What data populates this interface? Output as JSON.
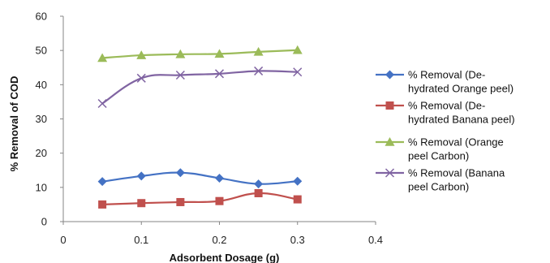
{
  "chart_data": {
    "type": "line",
    "xlabel": "Adsorbent Dosage (g)",
    "ylabel": "% Removal of COD",
    "xlim": [
      0,
      0.4
    ],
    "ylim": [
      0,
      60
    ],
    "x_ticks": [
      "0",
      "0.1",
      "0.2",
      "0.3",
      "0.4"
    ],
    "y_ticks": [
      "0",
      "10",
      "20",
      "30",
      "40",
      "50",
      "60"
    ],
    "grid": false,
    "legend_position": "right",
    "series": [
      {
        "name": "% Removal (De-hydrated Orange peel)",
        "legend_lines": [
          "% Removal (De-",
          "hydrated Orange peel)"
        ],
        "color": "#4472C4",
        "marker": "diamond",
        "x": [
          0.05,
          0.1,
          0.15,
          0.2,
          0.25,
          0.3
        ],
        "y": [
          11.7,
          13.3,
          14.3,
          12.7,
          11.0,
          11.8
        ]
      },
      {
        "name": "% Removal (De-hydrated Banana peel)",
        "legend_lines": [
          "% Removal (De-",
          "hydrated Banana peel)"
        ],
        "color": "#C0504D",
        "marker": "square",
        "x": [
          0.05,
          0.1,
          0.15,
          0.2,
          0.25,
          0.3
        ],
        "y": [
          5.0,
          5.4,
          5.7,
          6.0,
          8.3,
          6.5
        ]
      },
      {
        "name": "% Removal (Orange peel Carbon)",
        "legend_lines": [
          "% Removal (Orange",
          "peel Carbon)"
        ],
        "color": "#9BBB59",
        "marker": "triangle",
        "x": [
          0.05,
          0.1,
          0.15,
          0.2,
          0.25,
          0.3
        ],
        "y": [
          47.8,
          48.6,
          48.9,
          49.0,
          49.6,
          50.1
        ]
      },
      {
        "name": "% Removal (Banana peel Carbon)",
        "legend_lines": [
          "% Removal (Banana",
          "peel Carbon)"
        ],
        "color": "#8064A2",
        "marker": "x",
        "x": [
          0.05,
          0.1,
          0.15,
          0.2,
          0.25,
          0.3
        ],
        "y": [
          34.5,
          41.9,
          42.8,
          43.2,
          44.0,
          43.7
        ]
      }
    ]
  }
}
